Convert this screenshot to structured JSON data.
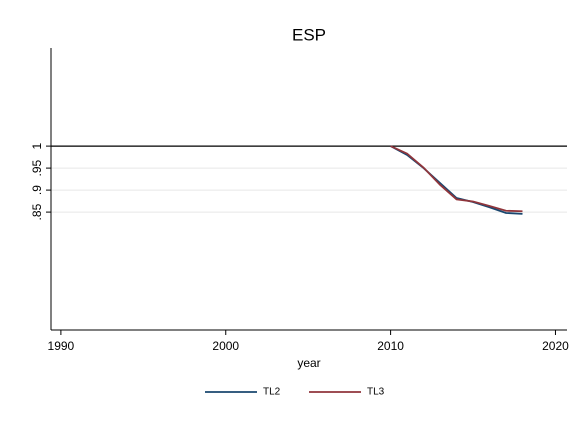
{
  "chart_data": {
    "type": "line",
    "title": "ESP",
    "x_label": "year",
    "x": [
      2010,
      2011,
      2012,
      2013,
      2014,
      2015,
      2016,
      2017,
      2018
    ],
    "series": [
      {
        "name": "TL2",
        "color": "#1a476f",
        "values": [
          1,
          0.98,
          0.95,
          0.916,
          0.882,
          0.873,
          0.861,
          0.848,
          0.846
        ]
      },
      {
        "name": "TL3",
        "color": "#90353b",
        "values": [
          1,
          0.983,
          0.951,
          0.912,
          0.879,
          0.874,
          0.864,
          0.853,
          0.852
        ]
      }
    ],
    "xlim": [
      1989.4,
      2020.7
    ],
    "xticks": [
      1990,
      2000,
      2010,
      2020
    ],
    "ylim": [
      0.582,
      1.223
    ],
    "yticks": [
      {
        "value": 0.85,
        "label": ".85"
      },
      {
        "value": 0.9,
        "label": ".9"
      },
      {
        "value": 0.95,
        "label": ".95"
      },
      1
    ],
    "reference_line": 1,
    "grid": true,
    "legend": "bottom"
  }
}
